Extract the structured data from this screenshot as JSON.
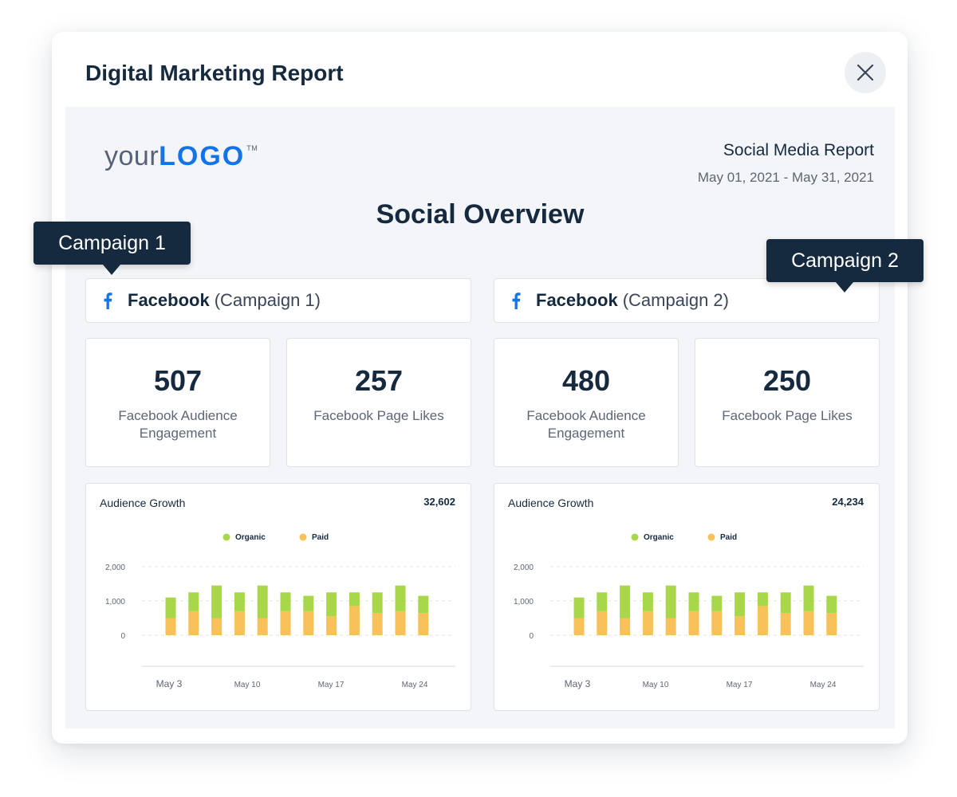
{
  "modal": {
    "title": "Digital Marketing Report"
  },
  "logo": {
    "prefix": "your",
    "mark": "LOGO",
    "tm": "TM"
  },
  "report": {
    "name": "Social Media Report",
    "date_range": "May 01, 2021 - May 31, 2021",
    "section_title": "Social Overview"
  },
  "colors": {
    "organic": "#a8d84a",
    "paid": "#f9c15a",
    "facebook": "#1473e6",
    "tag_bg": "#15293f"
  },
  "campaigns": [
    {
      "tag": "Campaign 1",
      "network": "Facebook",
      "campaign_label": "(Campaign 1)",
      "kpis": [
        {
          "value": "507",
          "label": "Facebook Audience Engagement"
        },
        {
          "value": "257",
          "label": "Facebook Page Likes"
        }
      ]
    },
    {
      "tag": "Campaign 2",
      "network": "Facebook",
      "campaign_label": "(Campaign 2)",
      "kpis": [
        {
          "value": "480",
          "label": "Facebook Audience Engagement"
        },
        {
          "value": "250",
          "label": "Facebook Page Likes"
        }
      ]
    }
  ],
  "chart_data": [
    {
      "type": "bar",
      "stacked": true,
      "title": "Audience Growth",
      "total": "32,602",
      "x_tick_labels": [
        "May 3",
        "May 10",
        "May 17",
        "May 24"
      ],
      "y_ticks": [
        "2,000",
        "1,000",
        "0"
      ],
      "ylim": [
        0,
        2000
      ],
      "legend_position": "top-center",
      "grid": "dashed horizontal",
      "series": [
        {
          "name": "Paid",
          "color": "#f9c15a",
          "values": [
            500,
            700,
            500,
            700,
            500,
            700,
            700,
            550,
            850,
            650,
            700,
            650
          ]
        },
        {
          "name": "Organic",
          "color": "#a8d84a",
          "values": [
            600,
            550,
            950,
            550,
            950,
            550,
            450,
            700,
            400,
            600,
            750,
            500
          ]
        }
      ]
    },
    {
      "type": "bar",
      "stacked": true,
      "title": "Audience Growth",
      "total": "24,234",
      "x_tick_labels": [
        "May 3",
        "May 10",
        "May 17",
        "May 24"
      ],
      "y_ticks": [
        "2,000",
        "1,000",
        "0"
      ],
      "ylim": [
        0,
        2000
      ],
      "legend_position": "top-center",
      "grid": "dashed horizontal",
      "series": [
        {
          "name": "Paid",
          "color": "#f9c15a",
          "values": [
            500,
            700,
            500,
            700,
            500,
            700,
            700,
            550,
            850,
            650,
            700,
            650
          ]
        },
        {
          "name": "Organic",
          "color": "#a8d84a",
          "values": [
            600,
            550,
            950,
            550,
            950,
            550,
            450,
            700,
            400,
            600,
            750,
            500
          ]
        }
      ]
    }
  ]
}
